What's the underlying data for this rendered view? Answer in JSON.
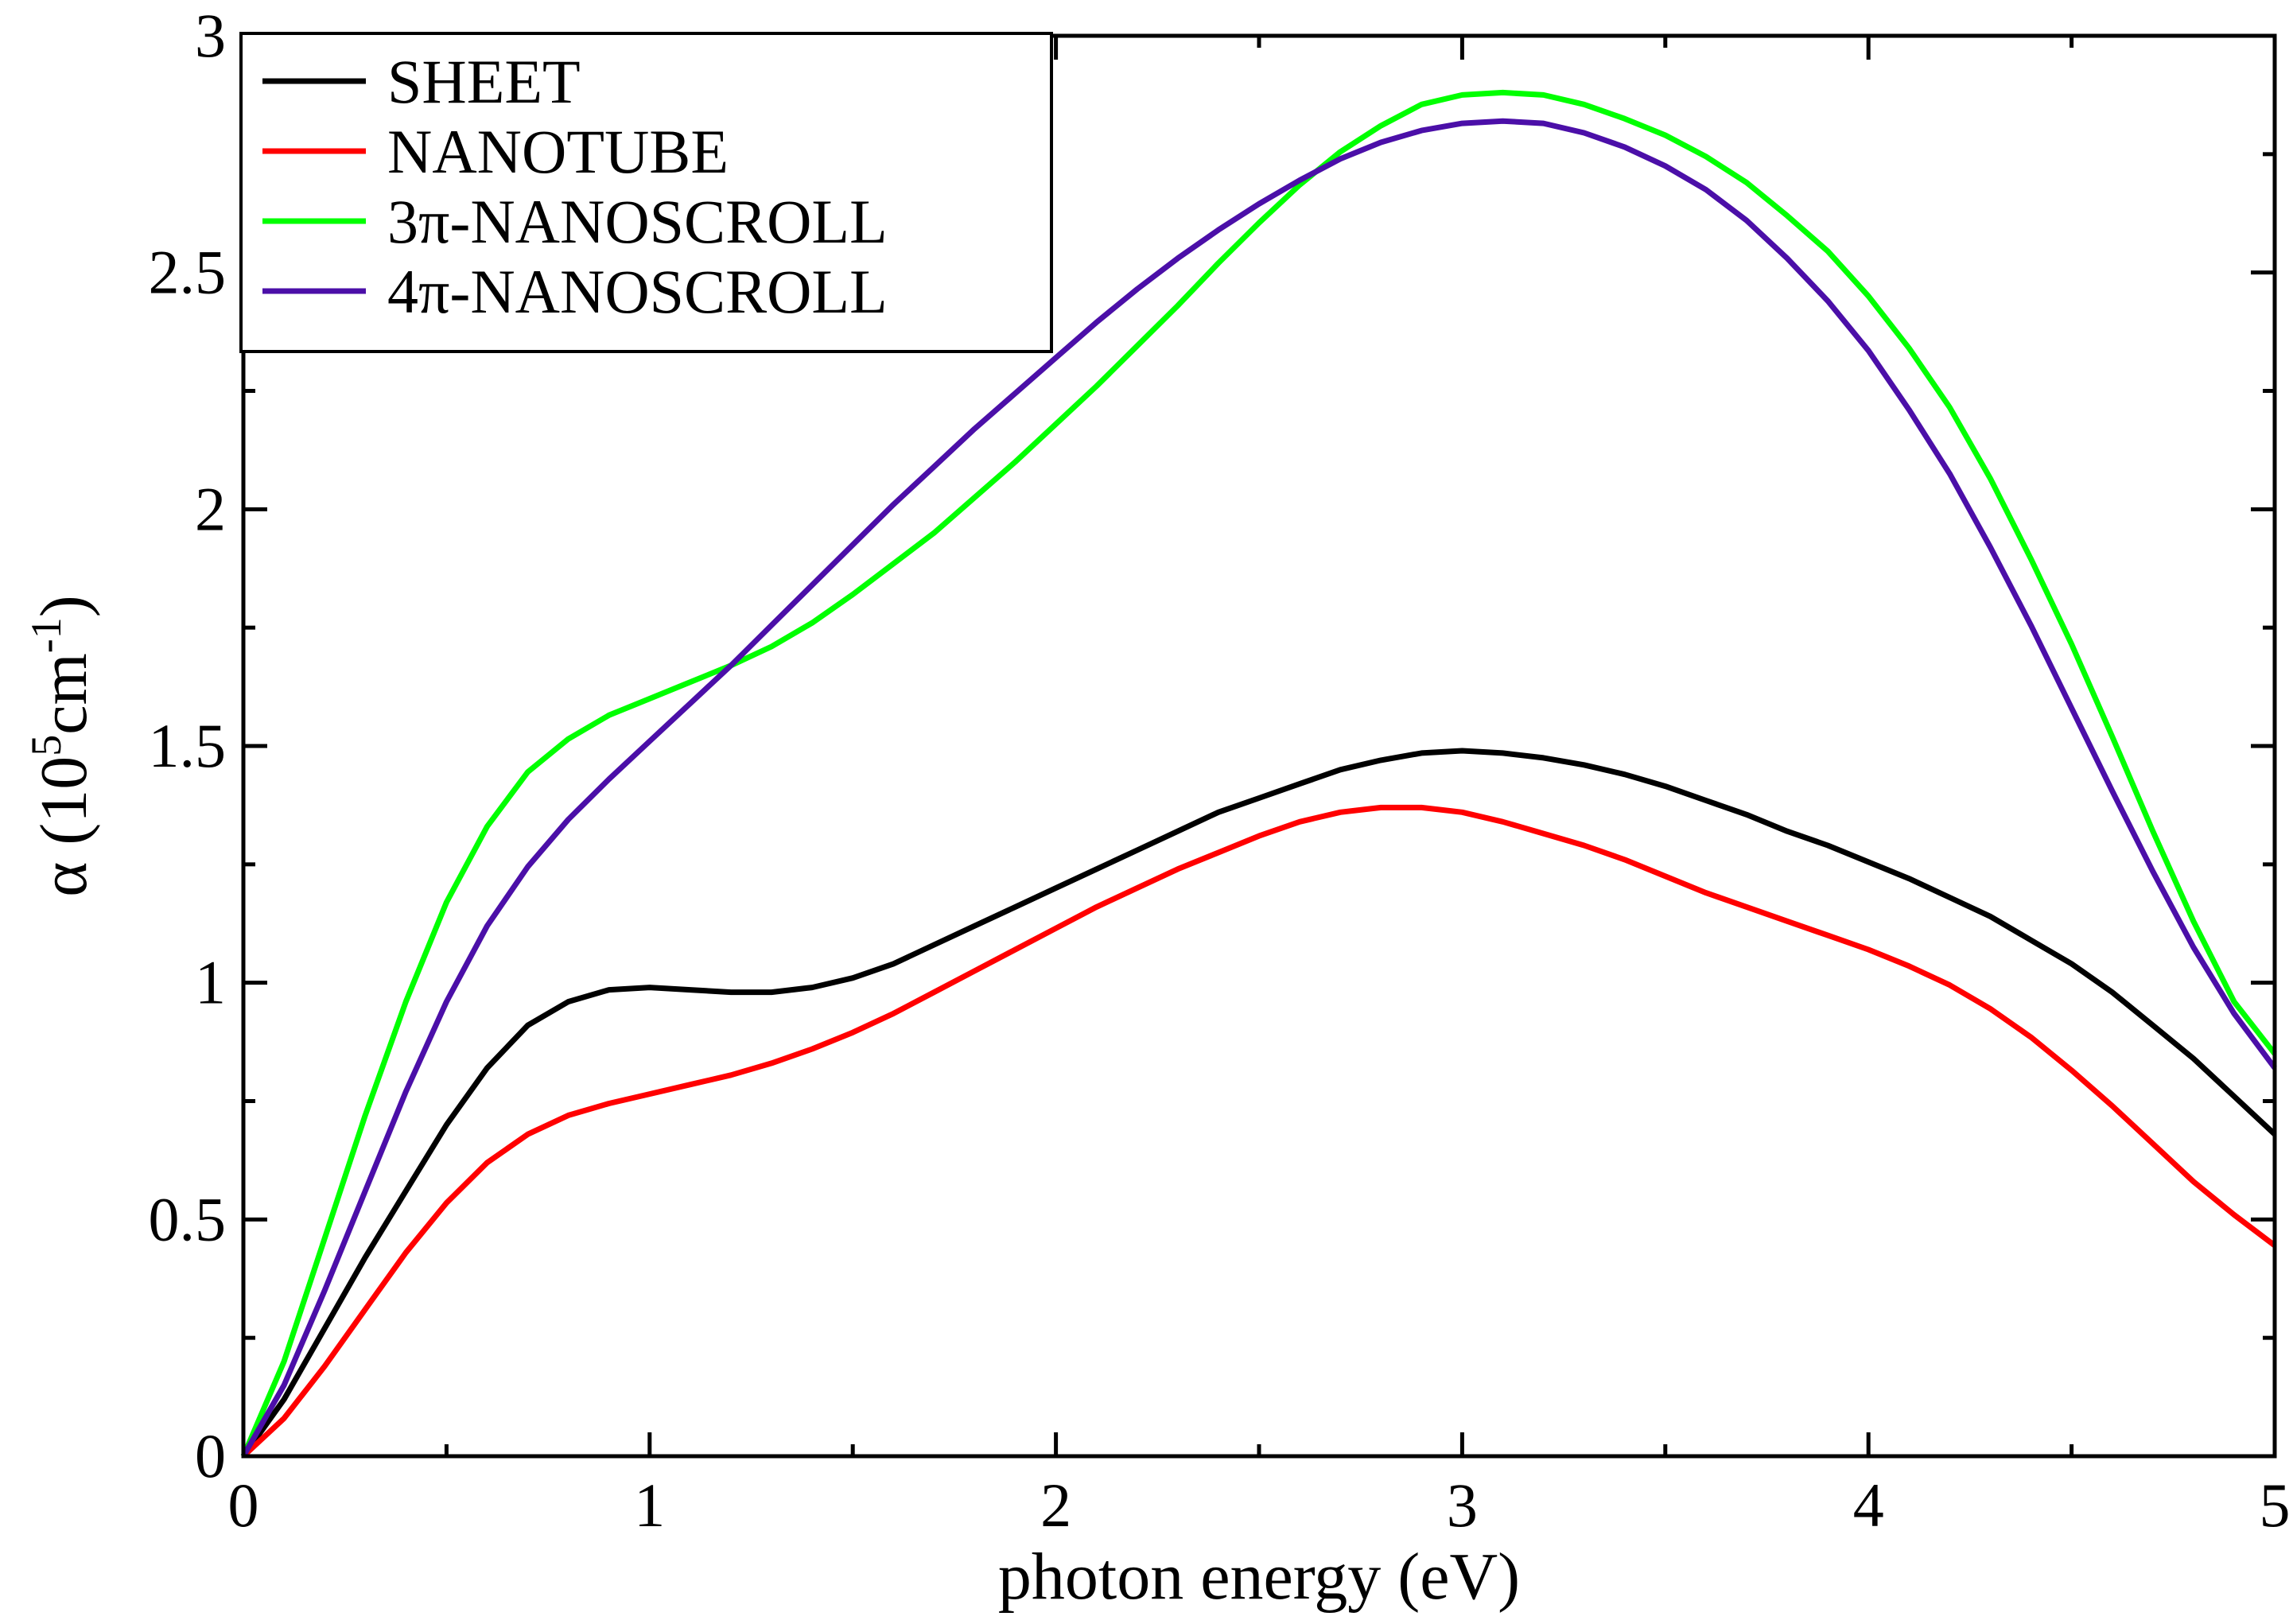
{
  "chart_data": {
    "type": "line",
    "title": "",
    "xlabel": "photon energy (eV)",
    "ylabel": {
      "prefix": "α (10",
      "sup1": "5",
      "middle": "cm",
      "sup2": "-1",
      "suffix": ")"
    },
    "xlim": [
      0,
      5
    ],
    "ylim": [
      0,
      3
    ],
    "x_ticks": [
      0,
      1,
      2,
      3,
      4,
      5
    ],
    "x_tick_labels": [
      "0",
      "1",
      "2",
      "3",
      "4",
      "5"
    ],
    "y_ticks": [
      0,
      0.5,
      1,
      1.5,
      2,
      2.5,
      3
    ],
    "y_tick_labels": [
      "0",
      "0.5",
      "1",
      "1.5",
      "2",
      "2.5",
      "3"
    ],
    "grid": false,
    "legend_position": "top-left",
    "x": [
      0,
      0.1,
      0.2,
      0.3,
      0.4,
      0.5,
      0.6,
      0.7,
      0.8,
      0.9,
      1.0,
      1.1,
      1.2,
      1.3,
      1.4,
      1.5,
      1.6,
      1.7,
      1.8,
      1.9,
      2.0,
      2.1,
      2.2,
      2.3,
      2.4,
      2.5,
      2.6,
      2.7,
      2.8,
      2.9,
      3.0,
      3.1,
      3.2,
      3.3,
      3.4,
      3.5,
      3.6,
      3.7,
      3.8,
      3.9,
      4.0,
      4.1,
      4.2,
      4.3,
      4.4,
      4.5,
      4.6,
      4.7,
      4.8,
      4.9,
      5.0
    ],
    "series": [
      {
        "name": "SHEET",
        "color": "#000000",
        "values": [
          0,
          0.12,
          0.27,
          0.42,
          0.56,
          0.7,
          0.82,
          0.91,
          0.96,
          0.985,
          0.99,
          0.985,
          0.98,
          0.98,
          0.99,
          1.01,
          1.04,
          1.08,
          1.12,
          1.16,
          1.2,
          1.24,
          1.28,
          1.32,
          1.36,
          1.39,
          1.42,
          1.45,
          1.47,
          1.485,
          1.49,
          1.485,
          1.475,
          1.46,
          1.44,
          1.415,
          1.385,
          1.355,
          1.32,
          1.29,
          1.255,
          1.22,
          1.18,
          1.14,
          1.09,
          1.04,
          0.98,
          0.91,
          0.84,
          0.76,
          0.68
        ]
      },
      {
        "name": "NANOTUBE",
        "color": "#ff0000",
        "values": [
          0,
          0.08,
          0.19,
          0.31,
          0.43,
          0.535,
          0.62,
          0.68,
          0.72,
          0.745,
          0.765,
          0.785,
          0.805,
          0.83,
          0.86,
          0.895,
          0.935,
          0.98,
          1.025,
          1.07,
          1.115,
          1.16,
          1.2,
          1.24,
          1.275,
          1.31,
          1.34,
          1.36,
          1.37,
          1.37,
          1.36,
          1.34,
          1.315,
          1.29,
          1.26,
          1.225,
          1.19,
          1.16,
          1.13,
          1.1,
          1.07,
          1.035,
          0.995,
          0.945,
          0.885,
          0.815,
          0.74,
          0.66,
          0.58,
          0.51,
          0.445
        ]
      },
      {
        "name": "3π-NANOSCROLL",
        "color": "#00ff00",
        "values": [
          0,
          0.2,
          0.46,
          0.72,
          0.96,
          1.17,
          1.33,
          1.445,
          1.515,
          1.565,
          1.6,
          1.635,
          1.67,
          1.71,
          1.76,
          1.82,
          1.885,
          1.95,
          2.025,
          2.1,
          2.18,
          2.26,
          2.345,
          2.43,
          2.52,
          2.605,
          2.685,
          2.755,
          2.81,
          2.855,
          2.875,
          2.88,
          2.875,
          2.855,
          2.825,
          2.79,
          2.745,
          2.69,
          2.62,
          2.545,
          2.45,
          2.34,
          2.215,
          2.065,
          1.895,
          1.715,
          1.52,
          1.32,
          1.13,
          0.96,
          0.85
        ]
      },
      {
        "name": "4π-NANOSCROLL",
        "color": "#4b0fa8",
        "values": [
          0,
          0.15,
          0.35,
          0.56,
          0.77,
          0.96,
          1.12,
          1.245,
          1.345,
          1.43,
          1.51,
          1.59,
          1.67,
          1.755,
          1.84,
          1.925,
          2.01,
          2.09,
          2.17,
          2.245,
          2.32,
          2.395,
          2.465,
          2.53,
          2.59,
          2.645,
          2.695,
          2.74,
          2.775,
          2.8,
          2.815,
          2.82,
          2.815,
          2.795,
          2.765,
          2.725,
          2.675,
          2.61,
          2.53,
          2.44,
          2.335,
          2.21,
          2.075,
          1.92,
          1.755,
          1.58,
          1.405,
          1.235,
          1.075,
          0.935,
          0.82
        ]
      }
    ]
  }
}
